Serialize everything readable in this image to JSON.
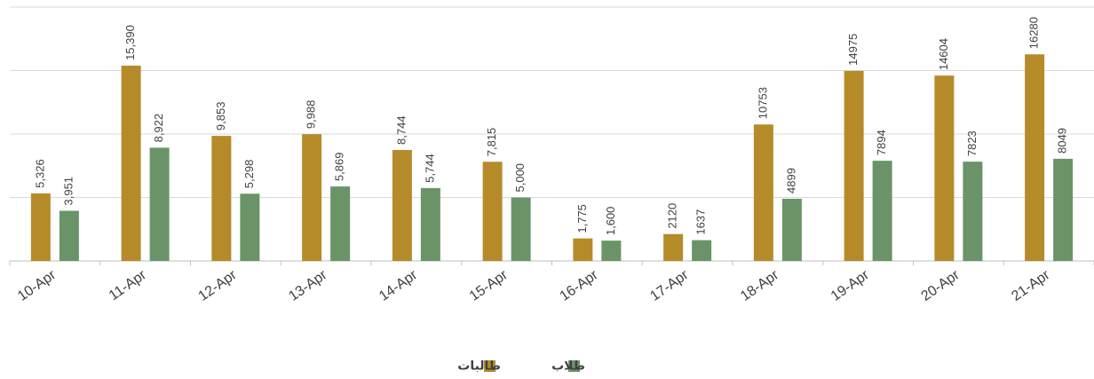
{
  "chart_data": {
    "type": "bar",
    "categories": [
      "10-Apr",
      "11-Apr",
      "12-Apr",
      "13-Apr",
      "14-Apr",
      "15-Apr",
      "16-Apr",
      "17-Apr",
      "18-Apr",
      "19-Apr",
      "20-Apr",
      "21-Apr"
    ],
    "series": [
      {
        "name": "طالبات",
        "color": "#b58b2a",
        "values": [
          5326,
          15390,
          9853,
          9988,
          8744,
          7815,
          1775,
          2120,
          10753,
          14975,
          14604,
          16280
        ],
        "value_labels": [
          "5,326",
          "15,390",
          "9,853",
          "9,988",
          "8,744",
          "7,815",
          "1,775",
          "2120",
          "10753",
          "14975",
          "14604",
          "16280"
        ]
      },
      {
        "name": "طلاب",
        "color": "#6a9468",
        "values": [
          3951,
          8922,
          5298,
          5869,
          5744,
          5000,
          1600,
          1637,
          4899,
          7894,
          7823,
          8049
        ],
        "value_labels": [
          "3,951",
          "8,922",
          "5,298",
          "5,869",
          "5,744",
          "5,000",
          "1,600",
          "1637",
          "4899",
          "7894",
          "7823",
          "8049"
        ]
      }
    ],
    "ylim": [
      0,
      20000
    ],
    "yticks": [
      0,
      5000,
      10000,
      15000,
      20000
    ],
    "grid": true
  }
}
